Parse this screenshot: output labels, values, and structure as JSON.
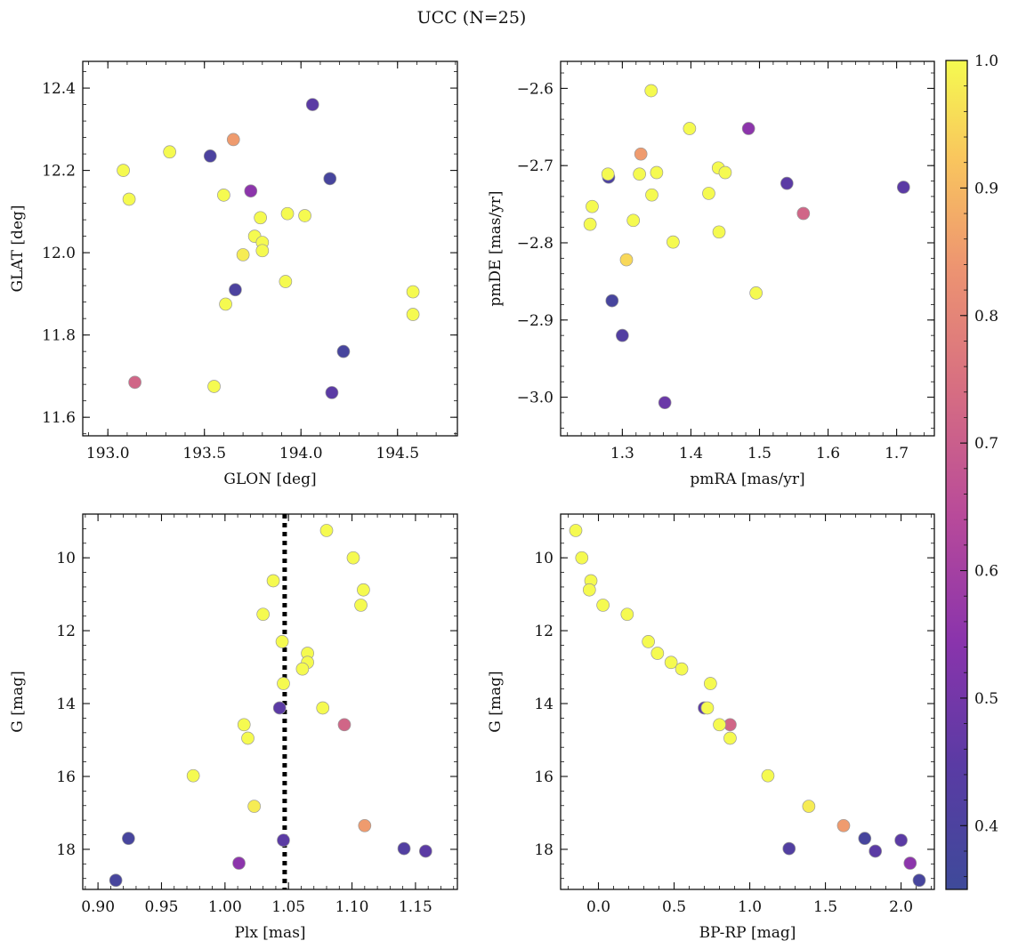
{
  "figure": {
    "title": "UCC (N=25)",
    "colorbar": {
      "colormap": "plasma",
      "range": [
        0.35,
        1.0
      ],
      "ticks": [
        0.4,
        0.5,
        0.6,
        0.7,
        0.8,
        0.9,
        1.0
      ],
      "tick_labels": [
        "0.4",
        "0.5",
        "0.6",
        "0.7",
        "0.8",
        "0.9",
        "1.0"
      ]
    }
  },
  "chart_data": [
    {
      "type": "scatter",
      "id": "glon_glat",
      "xlabel": "GLON [deg]",
      "ylabel": "GLAT [deg]",
      "xlim": [
        192.87,
        194.81
      ],
      "ylim": [
        11.555,
        12.465
      ],
      "invert_y": false,
      "xticks": [
        193.0,
        193.5,
        194.0,
        194.5
      ],
      "xtick_labels": [
        "193.0",
        "193.5",
        "194.0",
        "194.5"
      ],
      "yticks": [
        11.6,
        11.8,
        12.0,
        12.2,
        12.4
      ],
      "ytick_labels": [
        "11.6",
        "11.8",
        "12.0",
        "12.2",
        "12.4"
      ],
      "points": [
        {
          "x": 194.06,
          "y": 12.36,
          "c": 0.45
        },
        {
          "x": 193.65,
          "y": 12.275,
          "c": 0.85
        },
        {
          "x": 193.32,
          "y": 12.245,
          "c": 1.0
        },
        {
          "x": 193.53,
          "y": 12.235,
          "c": 0.4
        },
        {
          "x": 193.08,
          "y": 12.2,
          "c": 1.0
        },
        {
          "x": 194.15,
          "y": 12.18,
          "c": 0.38
        },
        {
          "x": 193.74,
          "y": 12.15,
          "c": 0.55
        },
        {
          "x": 193.6,
          "y": 12.14,
          "c": 1.0
        },
        {
          "x": 193.11,
          "y": 12.13,
          "c": 1.0
        },
        {
          "x": 193.93,
          "y": 12.095,
          "c": 1.0
        },
        {
          "x": 194.02,
          "y": 12.09,
          "c": 1.0
        },
        {
          "x": 193.79,
          "y": 12.085,
          "c": 1.0
        },
        {
          "x": 193.76,
          "y": 12.04,
          "c": 1.0
        },
        {
          "x": 193.8,
          "y": 12.025,
          "c": 1.0
        },
        {
          "x": 193.8,
          "y": 12.005,
          "c": 1.0
        },
        {
          "x": 193.7,
          "y": 11.995,
          "c": 0.98
        },
        {
          "x": 193.92,
          "y": 11.93,
          "c": 1.0
        },
        {
          "x": 193.66,
          "y": 11.91,
          "c": 0.4
        },
        {
          "x": 194.58,
          "y": 11.905,
          "c": 1.0
        },
        {
          "x": 193.61,
          "y": 11.875,
          "c": 1.0
        },
        {
          "x": 194.58,
          "y": 11.85,
          "c": 1.0
        },
        {
          "x": 194.22,
          "y": 11.76,
          "c": 0.38
        },
        {
          "x": 193.14,
          "y": 11.685,
          "c": 0.72
        },
        {
          "x": 193.55,
          "y": 11.675,
          "c": 1.0
        },
        {
          "x": 194.16,
          "y": 11.66,
          "c": 0.45
        }
      ]
    },
    {
      "type": "scatter",
      "id": "pm",
      "xlabel": "pmRA [mas/yr]",
      "ylabel": "pmDE [mas/yr]",
      "xlim": [
        1.21,
        1.755
      ],
      "ylim": [
        -3.05,
        -2.565
      ],
      "invert_y": false,
      "xticks": [
        1.3,
        1.4,
        1.5,
        1.6,
        1.7
      ],
      "xtick_labels": [
        "1.3",
        "1.4",
        "1.5",
        "1.6",
        "1.7"
      ],
      "yticks": [
        -3.0,
        -2.9,
        -2.8,
        -2.7,
        -2.6
      ],
      "ytick_labels": [
        "−3.0",
        "−2.9",
        "−2.8",
        "−2.7",
        "−2.6"
      ],
      "points": [
        {
          "x": 1.342,
          "y": -2.603,
          "c": 1.0
        },
        {
          "x": 1.398,
          "y": -2.652,
          "c": 1.0
        },
        {
          "x": 1.484,
          "y": -2.652,
          "c": 0.55
        },
        {
          "x": 1.327,
          "y": -2.685,
          "c": 0.85
        },
        {
          "x": 1.44,
          "y": -2.703,
          "c": 1.0
        },
        {
          "x": 1.35,
          "y": -2.709,
          "c": 1.0
        },
        {
          "x": 1.45,
          "y": -2.709,
          "c": 1.0
        },
        {
          "x": 1.325,
          "y": -2.711,
          "c": 1.0
        },
        {
          "x": 1.28,
          "y": -2.715,
          "c": 0.4
        },
        {
          "x": 1.279,
          "y": -2.711,
          "c": 1.0
        },
        {
          "x": 1.54,
          "y": -2.723,
          "c": 0.45
        },
        {
          "x": 1.71,
          "y": -2.728,
          "c": 0.45
        },
        {
          "x": 1.426,
          "y": -2.736,
          "c": 1.0
        },
        {
          "x": 1.343,
          "y": -2.738,
          "c": 1.0
        },
        {
          "x": 1.256,
          "y": -2.753,
          "c": 1.0
        },
        {
          "x": 1.564,
          "y": -2.762,
          "c": 0.72
        },
        {
          "x": 1.316,
          "y": -2.771,
          "c": 1.0
        },
        {
          "x": 1.253,
          "y": -2.776,
          "c": 1.0
        },
        {
          "x": 1.441,
          "y": -2.786,
          "c": 1.0
        },
        {
          "x": 1.374,
          "y": -2.799,
          "c": 1.0
        },
        {
          "x": 1.306,
          "y": -2.822,
          "c": 0.95
        },
        {
          "x": 1.495,
          "y": -2.865,
          "c": 1.0
        },
        {
          "x": 1.285,
          "y": -2.875,
          "c": 0.38
        },
        {
          "x": 1.3,
          "y": -2.92,
          "c": 0.42
        },
        {
          "x": 1.362,
          "y": -3.007,
          "c": 0.48
        }
      ]
    },
    {
      "type": "scatter",
      "id": "plx_g",
      "xlabel": "Plx [mas]",
      "ylabel": "G [mag]",
      "xlim": [
        0.888,
        1.183
      ],
      "ylim": [
        8.8,
        19.1
      ],
      "invert_y": true,
      "xticks": [
        0.9,
        0.95,
        1.0,
        1.05,
        1.1,
        1.15
      ],
      "xtick_labels": [
        "0.90",
        "0.95",
        "1.00",
        "1.05",
        "1.10",
        "1.15"
      ],
      "yticks": [
        10,
        12,
        14,
        16,
        18
      ],
      "ytick_labels": [
        "10",
        "12",
        "14",
        "16",
        "18"
      ],
      "vline": {
        "x": 1.047
      },
      "points": [
        {
          "x": 1.08,
          "y": 9.25,
          "c": 1.0
        },
        {
          "x": 1.101,
          "y": 10.0,
          "c": 1.0
        },
        {
          "x": 1.038,
          "y": 10.63,
          "c": 1.0
        },
        {
          "x": 1.109,
          "y": 10.88,
          "c": 1.0
        },
        {
          "x": 1.107,
          "y": 11.3,
          "c": 1.0
        },
        {
          "x": 1.03,
          "y": 11.55,
          "c": 1.0
        },
        {
          "x": 1.045,
          "y": 12.3,
          "c": 1.0
        },
        {
          "x": 1.065,
          "y": 12.62,
          "c": 1.0
        },
        {
          "x": 1.065,
          "y": 12.87,
          "c": 1.0
        },
        {
          "x": 1.061,
          "y": 13.05,
          "c": 1.0
        },
        {
          "x": 1.046,
          "y": 13.45,
          "c": 1.0
        },
        {
          "x": 1.077,
          "y": 14.12,
          "c": 1.0
        },
        {
          "x": 1.043,
          "y": 14.12,
          "c": 0.45
        },
        {
          "x": 1.094,
          "y": 14.58,
          "c": 0.72
        },
        {
          "x": 1.015,
          "y": 14.58,
          "c": 1.0
        },
        {
          "x": 1.018,
          "y": 14.95,
          "c": 1.0
        },
        {
          "x": 0.975,
          "y": 15.98,
          "c": 1.0
        },
        {
          "x": 1.023,
          "y": 16.82,
          "c": 0.98
        },
        {
          "x": 1.11,
          "y": 17.35,
          "c": 0.85
        },
        {
          "x": 0.924,
          "y": 17.7,
          "c": 0.38
        },
        {
          "x": 1.046,
          "y": 17.75,
          "c": 0.45
        },
        {
          "x": 1.141,
          "y": 17.98,
          "c": 0.42
        },
        {
          "x": 1.158,
          "y": 18.05,
          "c": 0.45
        },
        {
          "x": 1.011,
          "y": 18.38,
          "c": 0.55
        },
        {
          "x": 0.914,
          "y": 18.85,
          "c": 0.38
        }
      ]
    },
    {
      "type": "scatter",
      "id": "cmd",
      "xlabel": "BP-RP [mag]",
      "ylabel": "G [mag]",
      "xlim": [
        -0.25,
        2.22
      ],
      "ylim": [
        8.8,
        19.1
      ],
      "invert_y": true,
      "xticks": [
        0.0,
        0.5,
        1.0,
        1.5,
        2.0
      ],
      "xtick_labels": [
        "0.0",
        "0.5",
        "1.0",
        "1.5",
        "2.0"
      ],
      "yticks": [
        10,
        12,
        14,
        16,
        18
      ],
      "ytick_labels": [
        "10",
        "12",
        "14",
        "16",
        "18"
      ],
      "points": [
        {
          "x": -0.15,
          "y": 9.25,
          "c": 1.0
        },
        {
          "x": -0.11,
          "y": 10.0,
          "c": 1.0
        },
        {
          "x": -0.05,
          "y": 10.63,
          "c": 1.0
        },
        {
          "x": -0.06,
          "y": 10.88,
          "c": 1.0
        },
        {
          "x": 0.03,
          "y": 11.3,
          "c": 1.0
        },
        {
          "x": 0.19,
          "y": 11.55,
          "c": 1.0
        },
        {
          "x": 0.33,
          "y": 12.3,
          "c": 1.0
        },
        {
          "x": 0.39,
          "y": 12.62,
          "c": 1.0
        },
        {
          "x": 0.48,
          "y": 12.87,
          "c": 1.0
        },
        {
          "x": 0.55,
          "y": 13.05,
          "c": 1.0
        },
        {
          "x": 0.74,
          "y": 13.45,
          "c": 1.0
        },
        {
          "x": 0.7,
          "y": 14.12,
          "c": 0.45
        },
        {
          "x": 0.72,
          "y": 14.12,
          "c": 1.0
        },
        {
          "x": 0.87,
          "y": 14.58,
          "c": 0.72
        },
        {
          "x": 0.8,
          "y": 14.58,
          "c": 1.0
        },
        {
          "x": 0.87,
          "y": 14.95,
          "c": 1.0
        },
        {
          "x": 1.12,
          "y": 15.98,
          "c": 1.0
        },
        {
          "x": 1.39,
          "y": 16.82,
          "c": 0.98
        },
        {
          "x": 1.62,
          "y": 17.35,
          "c": 0.85
        },
        {
          "x": 1.76,
          "y": 17.7,
          "c": 0.38
        },
        {
          "x": 2.0,
          "y": 17.75,
          "c": 0.45
        },
        {
          "x": 1.26,
          "y": 17.98,
          "c": 0.42
        },
        {
          "x": 1.83,
          "y": 18.05,
          "c": 0.45
        },
        {
          "x": 2.06,
          "y": 18.38,
          "c": 0.55
        },
        {
          "x": 2.12,
          "y": 18.85,
          "c": 0.38
        }
      ]
    }
  ]
}
